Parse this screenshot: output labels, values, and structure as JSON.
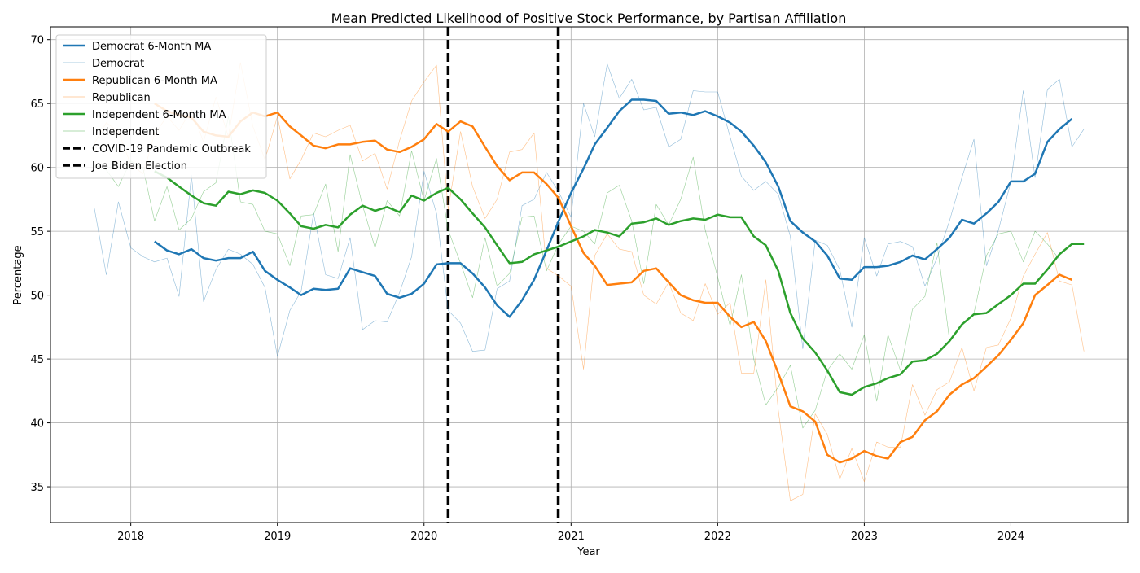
{
  "chart_data": {
    "type": "line",
    "title": "Mean Predicted Likelihood of Positive Stock Performance, by Partisan Affiliation",
    "xlabel": "Year",
    "ylabel": "Percentage",
    "xlim": [
      "2017-06-15",
      "2024-10-18"
    ],
    "ylim": [
      32.2,
      71.0
    ],
    "xticks": [
      "2018",
      "2019",
      "2020",
      "2021",
      "2022",
      "2023",
      "2024"
    ],
    "yticks": [
      35,
      40,
      45,
      50,
      55,
      60,
      65,
      70
    ],
    "grid": true,
    "legend_position": "top-left",
    "colors": {
      "democrat": "#1f77b4",
      "republican": "#ff7f0e",
      "independent": "#2ca02c",
      "event": "#000000"
    },
    "series": [
      {
        "name": "Democrat 6-Month MA",
        "color": "#1f77b4",
        "width": 2.5,
        "opacity": 1,
        "start": "2018-03",
        "values": [
          54.2,
          53.5,
          53.2,
          53.6,
          52.9,
          52.7,
          52.9,
          52.9,
          53.4,
          51.9,
          51.2,
          50.6,
          50.0,
          50.5,
          50.4,
          50.5,
          52.1,
          51.8,
          51.5,
          50.1,
          49.8,
          50.1,
          50.9,
          52.4,
          52.5,
          52.5,
          51.7,
          50.6,
          49.2,
          48.3,
          49.6,
          51.2,
          53.5,
          55.8,
          58.0,
          59.9,
          61.8,
          63.1,
          64.4,
          65.3,
          65.3,
          65.2,
          64.2,
          64.3,
          64.1,
          64.4,
          64.0,
          63.5,
          62.8,
          61.7,
          60.4,
          58.5,
          55.8,
          54.9,
          54.2,
          53.1,
          51.3,
          51.2,
          52.2,
          52.2,
          52.3,
          52.6,
          53.1,
          52.8,
          53.6,
          54.5,
          55.9,
          55.6,
          56.4,
          57.3,
          58.9,
          58.9,
          59.5,
          62.0,
          63.0,
          63.8
        ]
      },
      {
        "name": "Democrat",
        "color": "#1f77b4",
        "width": 0.6,
        "opacity": 0.5,
        "start": "2017-10",
        "values": [
          57.0,
          51.6,
          57.3,
          53.7,
          53.0,
          52.6,
          52.9,
          49.9,
          59.4,
          49.5,
          52.0,
          53.6,
          53.2,
          52.4,
          50.6,
          45.2,
          48.8,
          50.3,
          56.4,
          51.6,
          51.3,
          54.5,
          47.3,
          48.0,
          47.9,
          50.2,
          53.0,
          59.7,
          56.4,
          48.8,
          47.8,
          45.6,
          45.7,
          50.5,
          51.1,
          57.0,
          57.5,
          59.6,
          58.1,
          56.1,
          65.0,
          62.4,
          68.1,
          65.4,
          66.9,
          64.5,
          64.7,
          61.6,
          62.2,
          66.0,
          65.9,
          65.9,
          62.4,
          59.3,
          58.2,
          58.9,
          57.9,
          54.6,
          45.8,
          54.3,
          53.9,
          52.0,
          47.5,
          54.5,
          51.5,
          54.0,
          54.2,
          53.8,
          50.7,
          52.9,
          55.8,
          59.2,
          62.2,
          52.3,
          55.1,
          58.9,
          66.0,
          59.2,
          66.1,
          66.9,
          61.6,
          63.0
        ]
      },
      {
        "name": "Republican 6-Month MA",
        "color": "#ff7f0e",
        "width": 2.5,
        "opacity": 1,
        "start": "2018-03",
        "values": [
          65.0,
          64.4,
          64.1,
          63.9,
          62.8,
          62.5,
          62.4,
          63.6,
          64.3,
          64.0,
          64.3,
          63.2,
          62.5,
          61.7,
          61.5,
          61.8,
          61.8,
          62.0,
          62.1,
          61.4,
          61.2,
          61.6,
          62.2,
          63.4,
          62.8,
          63.6,
          63.2,
          61.6,
          60.1,
          59.0,
          59.6,
          59.6,
          58.7,
          57.6,
          55.4,
          53.3,
          52.3,
          50.8,
          50.9,
          51.0,
          51.9,
          52.1,
          51.0,
          50.0,
          49.6,
          49.4,
          49.4,
          48.3,
          47.5,
          47.9,
          46.4,
          43.9,
          41.3,
          40.9,
          40.1,
          37.5,
          36.9,
          37.2,
          37.8,
          37.4,
          37.2,
          38.5,
          38.9,
          40.2,
          40.9,
          42.2,
          43.0,
          43.5,
          44.4,
          45.3,
          46.5,
          47.8,
          50.0,
          50.8,
          51.6,
          51.2
        ]
      },
      {
        "name": "Republican",
        "color": "#ff7f0e",
        "width": 0.6,
        "opacity": 0.5,
        "start": "2017-10",
        "values": [
          61.8,
          63.5,
          62.8,
          60.2,
          59.5,
          62.6,
          64.0,
          62.9,
          64.5,
          62.0,
          65.5,
          62.4,
          68.2,
          63.2,
          60.6,
          64.0,
          59.1,
          60.6,
          62.7,
          62.4,
          62.9,
          63.3,
          60.5,
          61.1,
          58.3,
          62.1,
          65.2,
          66.7,
          68.0,
          56.7,
          62.8,
          58.5,
          56.0,
          57.5,
          61.2,
          61.4,
          62.7,
          52.1,
          51.5,
          50.7,
          44.2,
          53.1,
          54.8,
          53.6,
          53.4,
          50.0,
          49.3,
          51.0,
          48.6,
          48.0,
          50.9,
          48.5,
          49.4,
          43.9,
          43.9,
          51.2,
          41.0,
          33.9,
          34.4,
          40.7,
          39.1,
          35.6,
          38.0,
          35.4,
          38.5,
          38.1,
          38.1,
          43.0,
          40.6,
          42.6,
          43.2,
          45.9,
          42.5,
          45.9,
          46.1,
          48.2,
          51.5,
          53.2,
          54.9,
          51.1,
          50.8,
          45.6
        ]
      },
      {
        "name": "Independent 6-Month MA",
        "color": "#2ca02c",
        "width": 2.5,
        "opacity": 1,
        "start": "2018-03",
        "values": [
          59.7,
          59.2,
          58.5,
          57.8,
          57.2,
          57.0,
          58.1,
          57.9,
          58.2,
          58.0,
          57.4,
          56.4,
          55.4,
          55.2,
          55.5,
          55.3,
          56.3,
          57.0,
          56.6,
          56.9,
          56.5,
          57.8,
          57.4,
          58.0,
          58.4,
          57.5,
          56.4,
          55.3,
          53.9,
          52.5,
          52.6,
          53.2,
          53.5,
          53.8,
          54.2,
          54.6,
          55.1,
          54.9,
          54.6,
          55.6,
          55.7,
          56.0,
          55.5,
          55.8,
          56.0,
          55.9,
          56.3,
          56.1,
          56.1,
          54.6,
          53.9,
          51.9,
          48.6,
          46.6,
          45.5,
          44.1,
          42.4,
          42.2,
          42.8,
          43.1,
          43.5,
          43.8,
          44.8,
          44.9,
          45.4,
          46.4,
          47.7,
          48.5,
          48.6,
          49.3,
          50.0,
          50.9,
          50.9,
          52.0,
          53.2,
          54.0,
          54.0
        ]
      },
      {
        "name": "Independent",
        "color": "#2ca02c",
        "width": 0.6,
        "opacity": 0.5,
        "start": "2017-10",
        "values": [
          60.2,
          59.8,
          58.5,
          60.5,
          59.9,
          55.8,
          58.5,
          55.1,
          56.0,
          58.1,
          58.8,
          64.0,
          57.3,
          57.1,
          55.0,
          54.8,
          52.3,
          56.2,
          56.3,
          58.7,
          53.4,
          61.0,
          57.0,
          53.7,
          57.4,
          56.2,
          61.3,
          57.4,
          60.7,
          55.1,
          52.5,
          49.8,
          54.5,
          50.7,
          51.7,
          56.1,
          56.2,
          51.9,
          54.0,
          55.4,
          55.0,
          54.0,
          58.0,
          58.6,
          55.8,
          50.9,
          57.1,
          55.5,
          57.5,
          60.8,
          55.1,
          51.4,
          47.6,
          51.6,
          45.0,
          41.4,
          42.8,
          44.5,
          39.6,
          41.0,
          44.1,
          45.4,
          44.2,
          46.9,
          41.7,
          46.9,
          44.1,
          48.9,
          49.9,
          54.1,
          46.5,
          47.7,
          48.6,
          53.1,
          54.8,
          55.0,
          52.6,
          55.0,
          54.0,
          52.8
        ]
      }
    ],
    "events": [
      {
        "name": "COVID-19 Pandemic Outbreak",
        "date": "2020-03-01"
      },
      {
        "name": "Joe Biden Election",
        "date": "2020-11-30"
      }
    ]
  }
}
